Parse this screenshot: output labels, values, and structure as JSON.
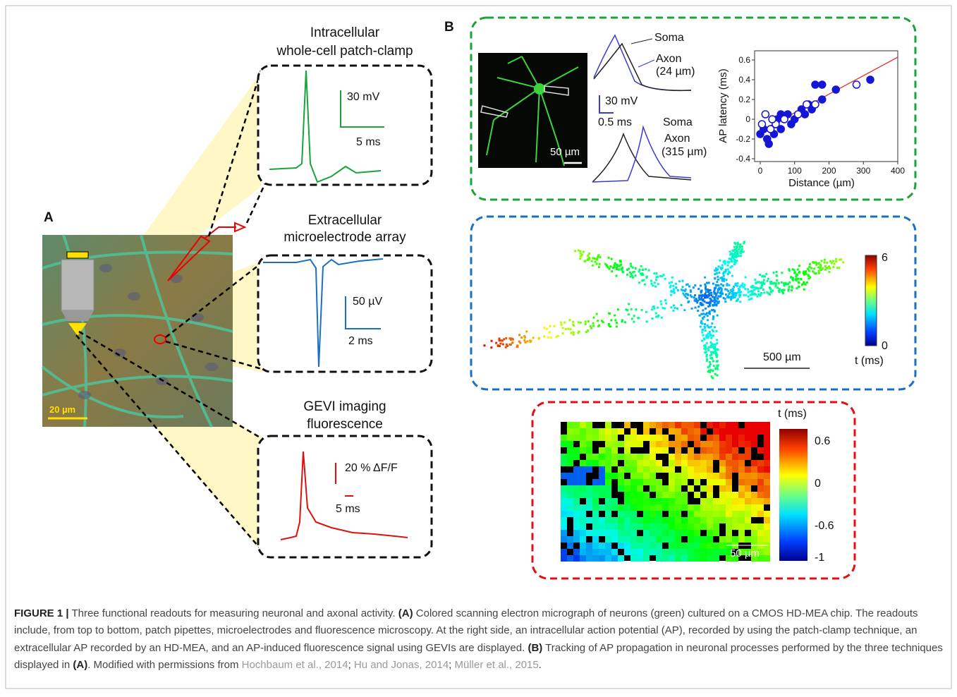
{
  "panel_a": {
    "label": "A",
    "scale": "20 µm",
    "boxes": [
      {
        "title": [
          "Intracellular",
          "whole-cell patch-clamp"
        ],
        "scale_v": "30 mV",
        "scale_h": "5 ms"
      },
      {
        "title": [
          "Extracellular",
          "microelectrode array"
        ],
        "scale_v": "50 µV",
        "scale_h": "2 ms"
      },
      {
        "title": [
          "GEVI imaging",
          "fluorescence"
        ],
        "scale_v": "20 % ΔF/F",
        "scale_h": "5 ms"
      }
    ]
  },
  "panel_b": {
    "label": "B",
    "patch": {
      "image_scale": "50 µm",
      "soma1": "Soma",
      "axon1": "Axon",
      "axon1_dist": "(24 µm)",
      "scale_v": "30 mV",
      "scale_h": "0.5 ms",
      "soma2": "Soma",
      "axon2": "Axon",
      "axon2_dist": "(315 µm)",
      "ylabel": "AP latency (ms)",
      "xlabel": "Distance (µm)",
      "yticks": [
        0.6,
        0.4,
        0.2,
        0,
        -0.2,
        -0.4
      ],
      "xticks": [
        0,
        100,
        200,
        300,
        400
      ],
      "filled": {
        "x": [
          0,
          10,
          20,
          25,
          40,
          50,
          60,
          80,
          100,
          120,
          140,
          150,
          160,
          180,
          180,
          220,
          320,
          60,
          90,
          130
        ],
        "y": [
          -0.15,
          -0.1,
          -0.2,
          -0.25,
          -0.15,
          0,
          -0.1,
          0.05,
          0,
          0.1,
          0.15,
          0.1,
          0.35,
          0.35,
          0.2,
          0.3,
          0.4,
          0.05,
          -0.05,
          0.05
        ]
      },
      "open": {
        "x": [
          5,
          15,
          30,
          45,
          70,
          110,
          135,
          160,
          280,
          35
        ],
        "y": [
          -0.05,
          0.05,
          -0.1,
          -0.05,
          0,
          0.05,
          0.15,
          0.15,
          0.35,
          0
        ]
      }
    },
    "mea": {
      "scale": "500 µm",
      "cbar_max": "6",
      "cbar_min": "0",
      "cbar_label": "t (ms)"
    },
    "gevi": {
      "cbar_label": "t (ms)",
      "cbar_ticks": [
        "0.6",
        "0",
        "-0.6",
        "-1"
      ],
      "scale": "50 µm"
    }
  },
  "caption": {
    "segments": [
      "FIGURE 1 |",
      " Three functional readouts for measuring neuronal and axonal activity. ",
      "(A)",
      " Colored scanning electron micrograph of neurons (green) cultured on a CMOS HD-MEA chip. The readouts include, from top to bottom, patch pipettes, microelectrodes and fluorescence microscopy. At the right side, an intracellular action potential (AP), recorded by using the patch-clamp technique, an extracellular AP recorded by an HD-MEA, and an AP-induced fluorescence signal using GEVIs are displayed. ",
      "(B)",
      " Tracking of AP propagation in neuronal processes performed by the three techniques displayed in ",
      "(A)",
      ". Modified with permissions from ",
      "Hochbaum et al., 2014",
      ";",
      " Hu and Jonas, 2014",
      ";",
      " Müller et al., 2015",
      "."
    ]
  }
}
